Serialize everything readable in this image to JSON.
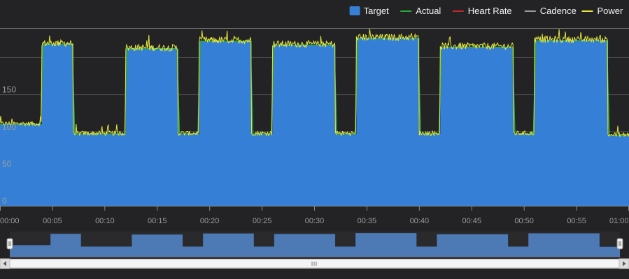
{
  "chart_data": {
    "type": "area",
    "legend": {
      "position": "top-right",
      "items": [
        {
          "name": "Target",
          "color": "#3580d6",
          "style": "box"
        },
        {
          "name": "Actual",
          "color": "#2ea53a",
          "style": "line"
        },
        {
          "name": "Heart Rate",
          "color": "#c0282e",
          "style": "line"
        },
        {
          "name": "Cadence",
          "color": "#9a9a9a",
          "style": "line"
        },
        {
          "name": "Power",
          "color": "#e6e640",
          "style": "line"
        }
      ]
    },
    "x_unit": "minutes",
    "x_range": [
      0,
      60
    ],
    "x_ticks": [
      {
        "value": 0,
        "label": "00:00"
      },
      {
        "value": 5,
        "label": "00:05"
      },
      {
        "value": 10,
        "label": "00:10"
      },
      {
        "value": 15,
        "label": "00:15"
      },
      {
        "value": 20,
        "label": "00:20"
      },
      {
        "value": 25,
        "label": "00:25"
      },
      {
        "value": 30,
        "label": "00:30"
      },
      {
        "value": 35,
        "label": "00:35"
      },
      {
        "value": 40,
        "label": "00:40"
      },
      {
        "value": 45,
        "label": "00:45"
      },
      {
        "value": 50,
        "label": "00:50"
      },
      {
        "value": 55,
        "label": "00:55"
      },
      {
        "value": 60,
        "label": "01:00"
      }
    ],
    "y_range": [
      0,
      240
    ],
    "y_ticks": [
      {
        "value": 0,
        "label": "0"
      },
      {
        "value": 50,
        "label": "50"
      },
      {
        "value": 100,
        "label": "100"
      },
      {
        "value": 150,
        "label": "150"
      }
    ],
    "grid": true,
    "target_segments": [
      {
        "start": 0,
        "end": 4.0,
        "value": 110
      },
      {
        "start": 4.0,
        "end": 7.0,
        "value": 218
      },
      {
        "start": 7.0,
        "end": 12.0,
        "value": 97
      },
      {
        "start": 12.0,
        "end": 17.0,
        "value": 212
      },
      {
        "start": 17.0,
        "end": 19.0,
        "value": 97
      },
      {
        "start": 19.0,
        "end": 24.0,
        "value": 222
      },
      {
        "start": 24.0,
        "end": 26.0,
        "value": 97
      },
      {
        "start": 26.0,
        "end": 32.0,
        "value": 217
      },
      {
        "start": 32.0,
        "end": 34.0,
        "value": 97
      },
      {
        "start": 34.0,
        "end": 40.0,
        "value": 226
      },
      {
        "start": 40.0,
        "end": 42.0,
        "value": 97
      },
      {
        "start": 42.0,
        "end": 49.0,
        "value": 214
      },
      {
        "start": 49.0,
        "end": 51.0,
        "value": 97
      },
      {
        "start": 51.0,
        "end": 58.0,
        "value": 223
      },
      {
        "start": 58.0,
        "end": 60.0,
        "value": 95
      }
    ],
    "navigator": {
      "handles": [
        "left",
        "right"
      ],
      "scrollbar": true
    }
  }
}
